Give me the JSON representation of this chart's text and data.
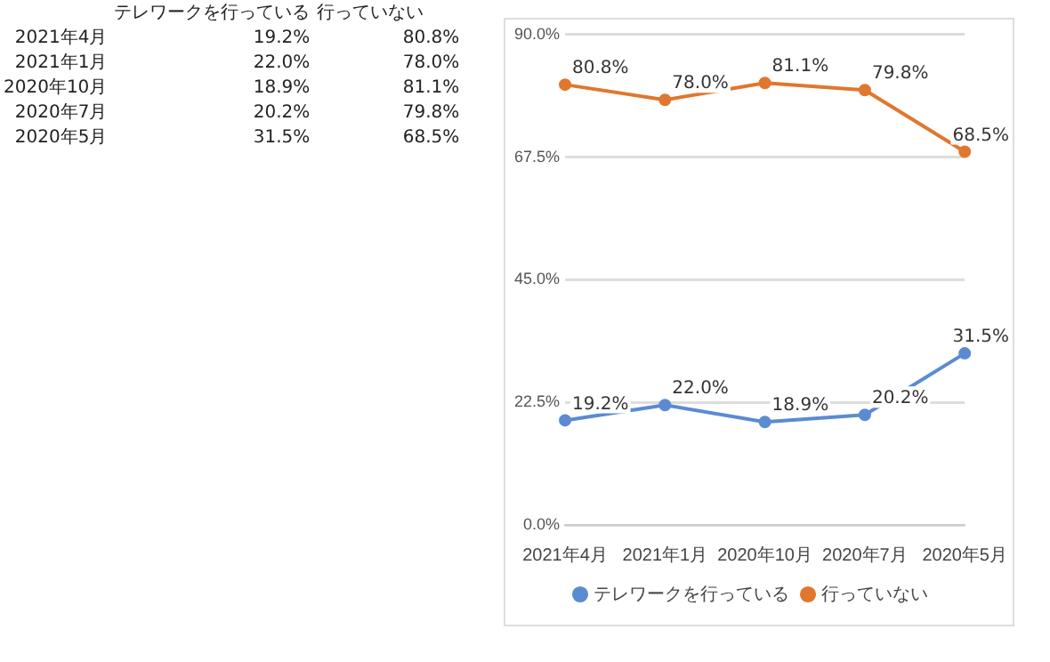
{
  "chart_data": {
    "type": "line",
    "categories": [
      "2021年4月",
      "2021年1月",
      "2020年10月",
      "2020年7月",
      "2020年5月"
    ],
    "series": [
      {
        "name": "テレワークを行っている",
        "color": "#5b8bd0",
        "values": [
          19.2,
          22.0,
          18.9,
          20.2,
          31.5
        ],
        "value_labels": [
          "19.2%",
          "22.0%",
          "18.9%",
          "20.2%",
          "31.5%"
        ]
      },
      {
        "name": "行っていない",
        "color": "#e0772e",
        "values": [
          80.8,
          78.0,
          81.1,
          79.8,
          68.5
        ],
        "value_labels": [
          "80.8%",
          "78.0%",
          "81.1%",
          "79.8%",
          "68.5%"
        ]
      }
    ],
    "ylim": [
      0,
      90
    ],
    "yticks": [
      {
        "value": 0,
        "label": "0.0%"
      },
      {
        "value": 22.5,
        "label": "22.5%"
      },
      {
        "value": 45,
        "label": "45.0%"
      },
      {
        "value": 67.5,
        "label": "67.5%"
      },
      {
        "value": 90,
        "label": "90.0%"
      }
    ],
    "grid": "y",
    "legend": "bottom",
    "marker": "circle",
    "line_style": "solid"
  }
}
